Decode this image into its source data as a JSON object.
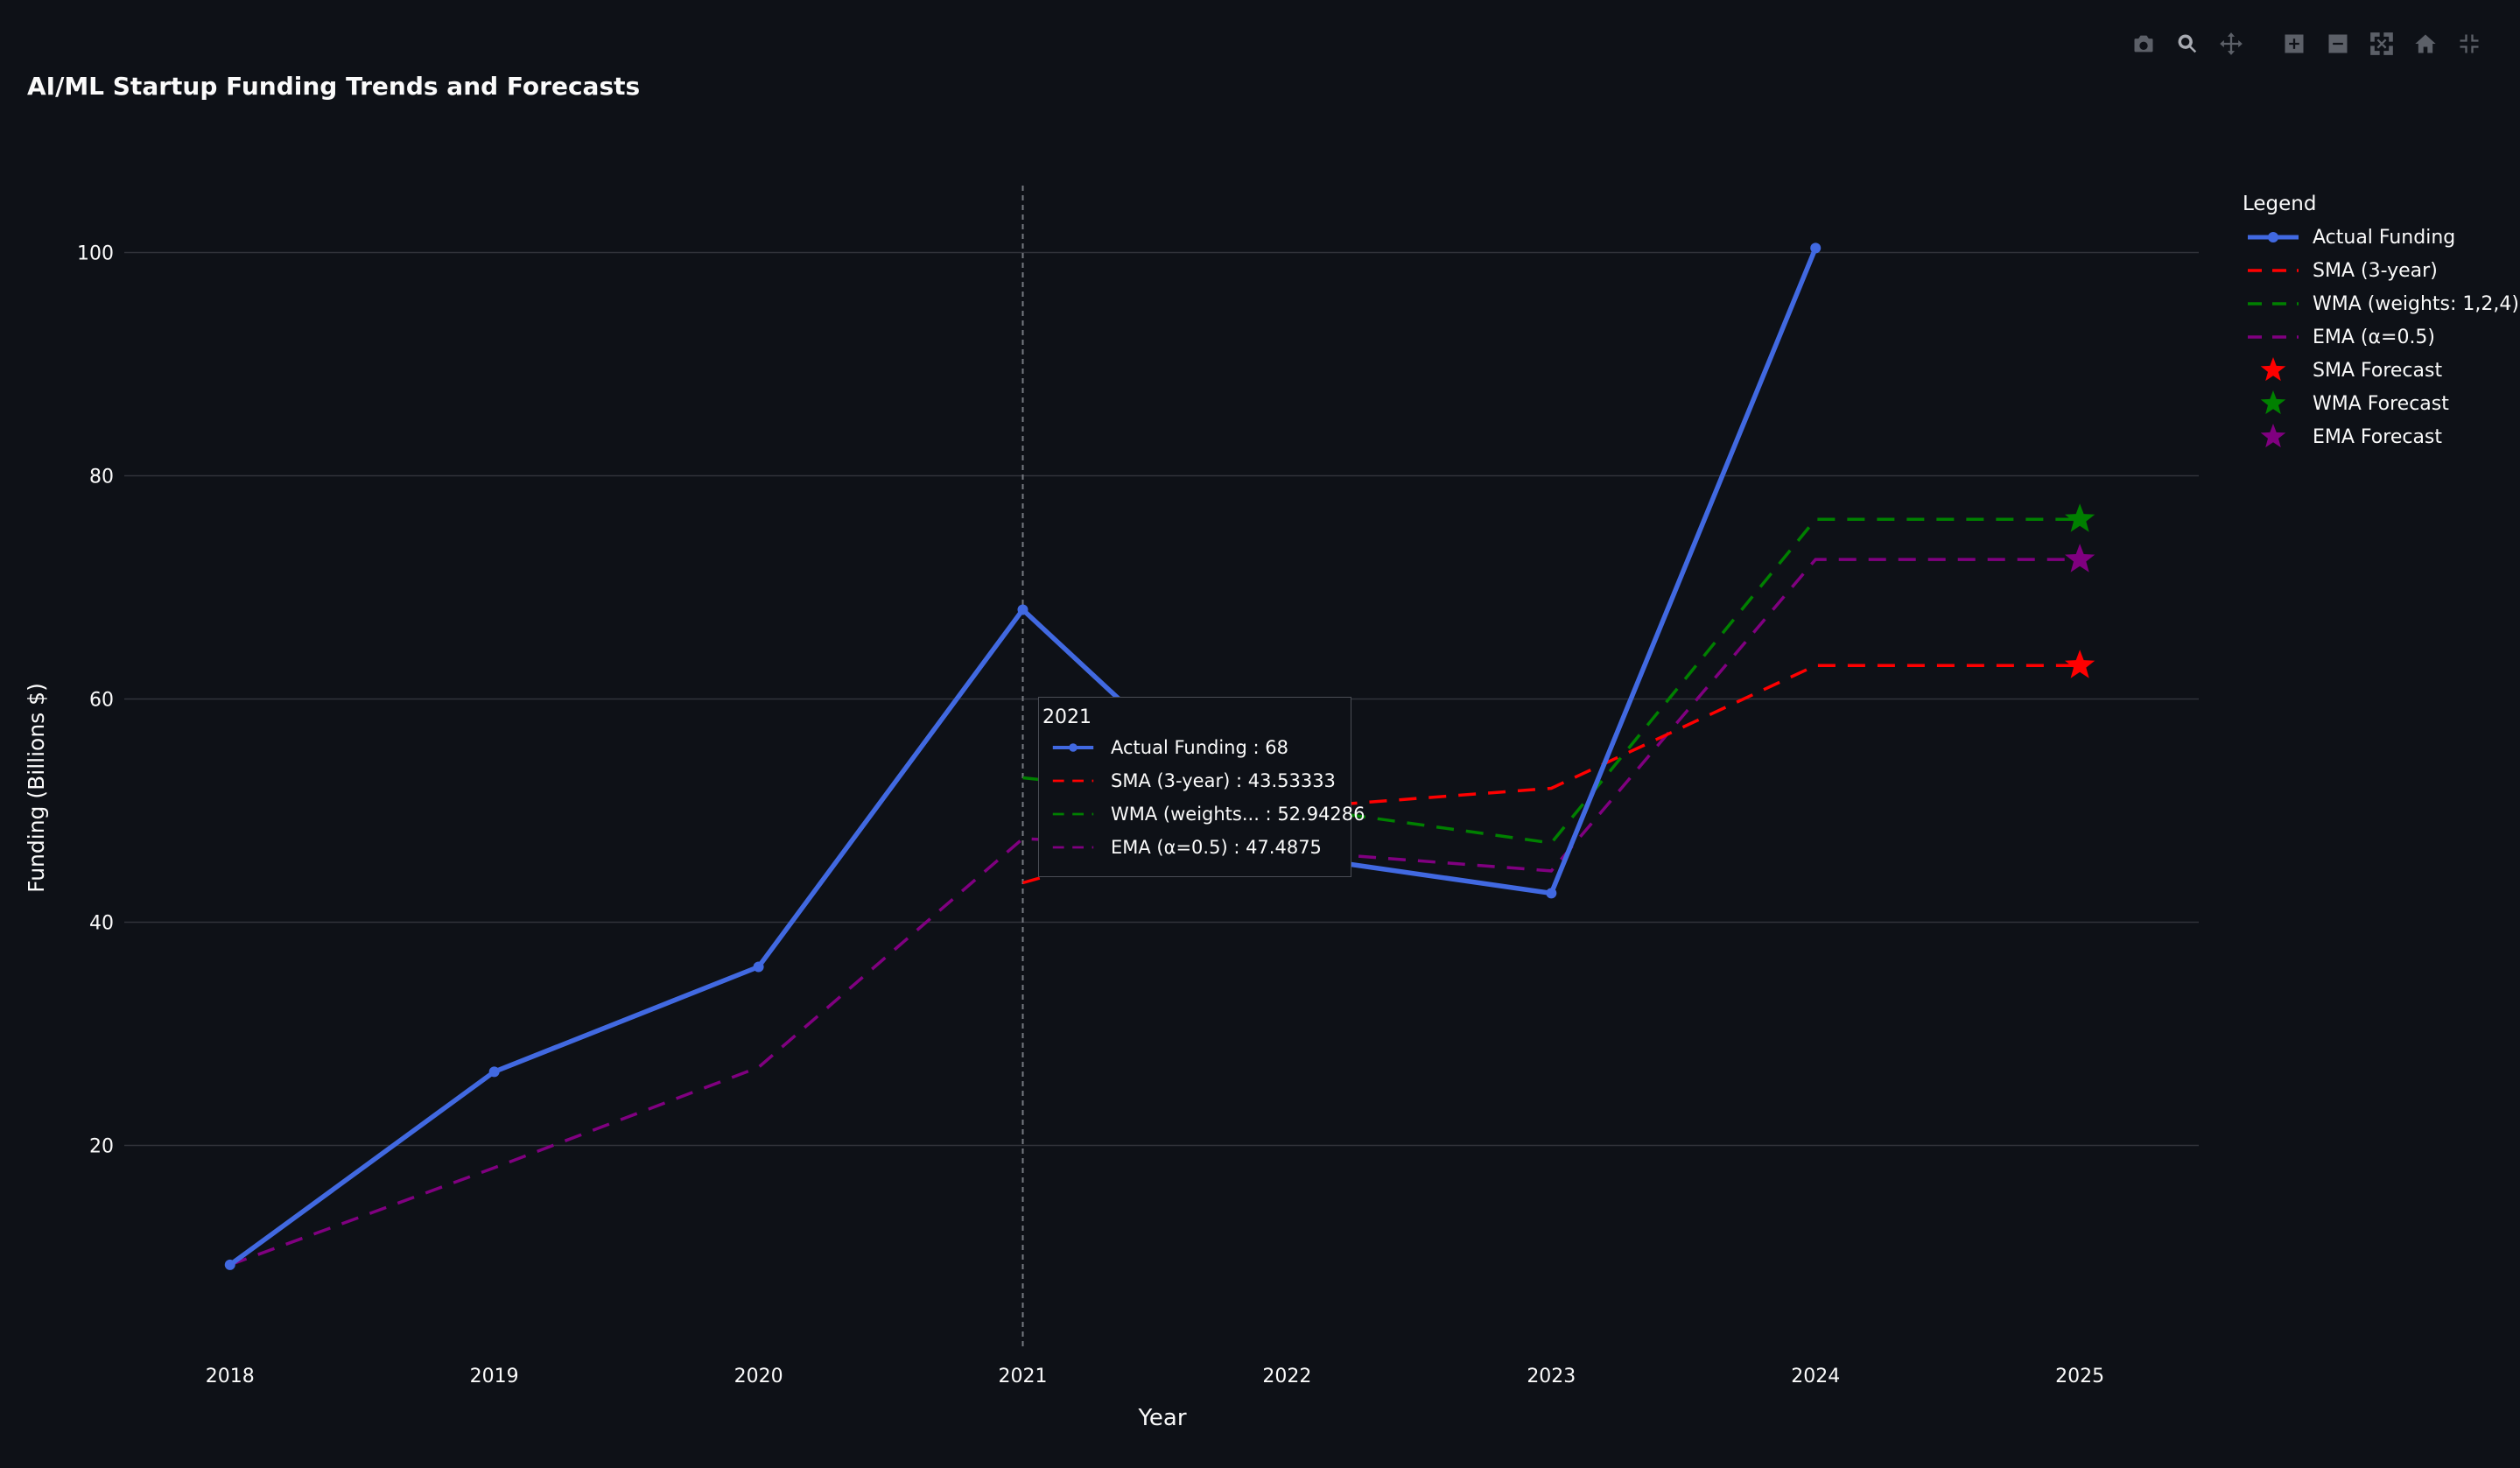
{
  "toolbar": {
    "buttons": [
      {
        "name": "camera-icon",
        "label": "Download plot as a png"
      },
      {
        "name": "zoom-icon",
        "label": "Zoom"
      },
      {
        "name": "pan-icon",
        "label": "Pan"
      },
      {
        "name": "zoom-in-icon",
        "label": "Zoom in"
      },
      {
        "name": "zoom-out-icon",
        "label": "Zoom out"
      },
      {
        "name": "autoscale-icon",
        "label": "Autoscale"
      },
      {
        "name": "reset-axes-icon",
        "label": "Reset axes"
      },
      {
        "name": "fullscreen-exit-icon",
        "label": "Exit fullscreen"
      }
    ]
  },
  "chart_data": {
    "type": "line",
    "title": "AI/ML Startup Funding Trends and Forecasts",
    "xlabel": "Year",
    "ylabel": "Funding (Billions $)",
    "xlim": [
      2017.6,
      2025.45
    ],
    "ylim": [
      2,
      106
    ],
    "x_ticks": [
      2018,
      2019,
      2020,
      2021,
      2022,
      2023,
      2024,
      2025
    ],
    "y_ticks": [
      20,
      40,
      60,
      80,
      100
    ],
    "grid": true,
    "legend_title": "Legend",
    "legend_position": "right",
    "series": [
      {
        "name": "Actual Funding",
        "style": "line-markers",
        "color": "#4169e1",
        "x": [
          2018,
          2019,
          2020,
          2021,
          2022,
          2023,
          2024
        ],
        "y": [
          9.3,
          26.6,
          36,
          68,
          46,
          42.6,
          100.4
        ]
      },
      {
        "name": "SMA (3-year)",
        "style": "dash",
        "color": "#ff0000",
        "x": [
          2021,
          2022,
          2023,
          2024,
          2025
        ],
        "y": [
          43.53333,
          50.2,
          52,
          63,
          63
        ]
      },
      {
        "name": "WMA (weights: 1,2,4)",
        "style": "dash",
        "color": "#008000",
        "x": [
          2021,
          2022,
          2023,
          2024,
          2025
        ],
        "y": [
          52.94286,
          50.4,
          47.1,
          76.1,
          76.1
        ]
      },
      {
        "name": "EMA (α=0.5)",
        "style": "dash",
        "color": "#800080",
        "x": [
          2018,
          2019,
          2020,
          2021,
          2022,
          2023,
          2024,
          2025
        ],
        "y": [
          9.3,
          18,
          27,
          47.4875,
          46.4,
          44.6,
          72.5,
          72.5
        ]
      },
      {
        "name": "SMA Forecast",
        "style": "star",
        "color": "#ff0000",
        "x": [
          2025
        ],
        "y": [
          63
        ]
      },
      {
        "name": "WMA Forecast",
        "style": "star",
        "color": "#008000",
        "x": [
          2025
        ],
        "y": [
          76.1
        ]
      },
      {
        "name": "EMA Forecast",
        "style": "star",
        "color": "#800080",
        "x": [
          2025
        ],
        "y": [
          72.5
        ]
      }
    ],
    "hover": {
      "x": 2021,
      "header": "2021",
      "rows": [
        {
          "label": "Actual Funding : 68",
          "color": "#4169e1",
          "style": "line-markers"
        },
        {
          "label": "SMA (3-year) : 43.53333",
          "color": "#ff0000",
          "style": "dash"
        },
        {
          "label": "WMA (weights... : 52.94286",
          "color": "#008000",
          "style": "dash"
        },
        {
          "label": "EMA (α=0.5) : 47.4875",
          "color": "#800080",
          "style": "dash"
        }
      ]
    }
  }
}
